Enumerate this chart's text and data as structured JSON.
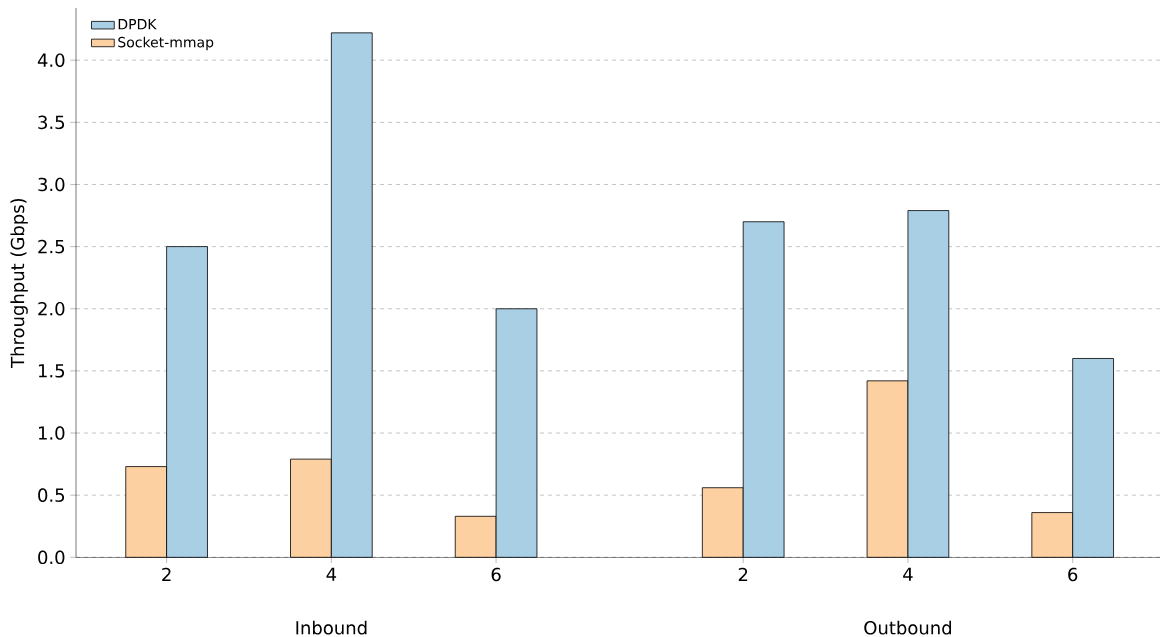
{
  "chart_data": {
    "type": "bar",
    "ylabel": "Throughput (Gbps)",
    "categories": [
      "2",
      "4",
      "6",
      "2",
      "4",
      "6"
    ],
    "series": [
      {
        "name": "Socket-mmap",
        "color": "#fdd0a2",
        "values": [
          0.73,
          0.79,
          0.33,
          0.56,
          1.42,
          0.36
        ]
      },
      {
        "name": "DPDK",
        "color": "#a9cfe5",
        "values": [
          2.5,
          4.22,
          2.0,
          2.7,
          2.79,
          1.6
        ]
      }
    ],
    "ylim": [
      0,
      4.42
    ],
    "yticks": [
      {
        "value": 0,
        "label": "0.0"
      },
      {
        "value": 0.5,
        "label": "0.5"
      },
      {
        "value": 1,
        "label": "1.0"
      },
      {
        "value": 1.5,
        "label": "1.5"
      },
      {
        "value": 2,
        "label": "2.0"
      },
      {
        "value": 2.5,
        "label": "2.5"
      },
      {
        "value": 3,
        "label": "3.0"
      },
      {
        "value": 3.5,
        "label": "3.5"
      },
      {
        "value": 4,
        "label": "4.0"
      }
    ],
    "grid": "y",
    "legend": "top left",
    "annotations": [
      "Inbound",
      "Outbound"
    ]
  }
}
